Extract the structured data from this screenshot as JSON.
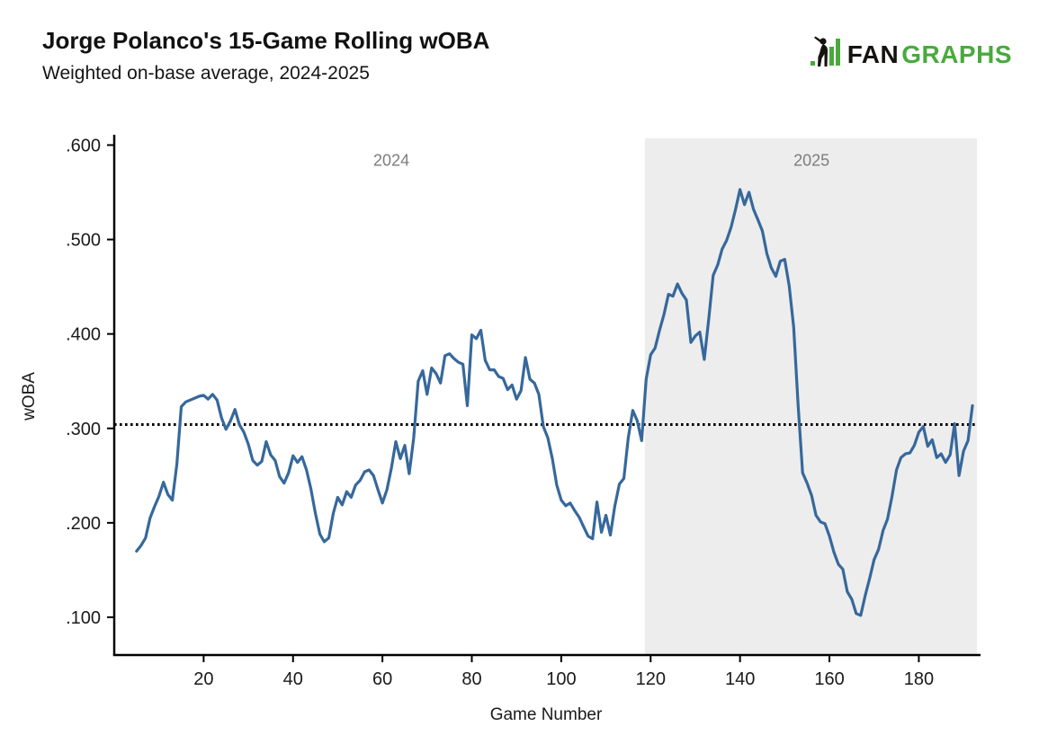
{
  "header": {
    "title": "Jorge Polanco's 15-Game Rolling wOBA",
    "subtitle": "Weighted on-base average, 2024-2025"
  },
  "logo": {
    "fan": "FAN",
    "graphs": "GRAPHS",
    "fan_color": "#14130f",
    "graphs_color": "#4aa93e",
    "icon": "batter-with-bars-icon"
  },
  "chart_data": {
    "type": "line",
    "title": "Jorge Polanco's 15-Game Rolling wOBA",
    "subtitle": "Weighted on-base average, 2024-2025",
    "xlabel": "Game Number",
    "ylabel": "wOBA",
    "grid": false,
    "legend": "none",
    "x_start": 5,
    "x_step": 1,
    "xlim": [
      0,
      193
    ],
    "ylim": [
      0.06,
      0.609
    ],
    "xticks": [
      20,
      40,
      60,
      80,
      100,
      120,
      140,
      160,
      180
    ],
    "yticks": [
      0.1,
      0.2,
      0.3,
      0.4,
      0.5,
      0.6
    ],
    "ytick_labels": [
      ".100",
      ".200",
      ".300",
      ".400",
      ".500",
      ".600"
    ],
    "reference_line": {
      "value": 0.304,
      "style": "dotted",
      "color": "#000000"
    },
    "regions": [
      {
        "label": "2024",
        "from": 0,
        "to": 118.7,
        "fill": "#ffffff"
      },
      {
        "label": "2025",
        "from": 118.7,
        "to": 193,
        "fill": "#ededed"
      }
    ],
    "annotations": [
      {
        "text": "2024",
        "x": 62,
        "y": 0.578,
        "color": "#7d7d7d"
      },
      {
        "text": "2025",
        "x": 156,
        "y": 0.578,
        "color": "#7d7d7d"
      }
    ],
    "series": [
      {
        "name": "15-game rolling wOBA",
        "color": "#36689B",
        "line_width": 3.2,
        "values": [
          0.17,
          0.176,
          0.184,
          0.205,
          0.217,
          0.228,
          0.243,
          0.23,
          0.224,
          0.262,
          0.323,
          0.328,
          0.33,
          0.332,
          0.334,
          0.335,
          0.331,
          0.336,
          0.33,
          0.311,
          0.299,
          0.308,
          0.32,
          0.304,
          0.296,
          0.283,
          0.266,
          0.261,
          0.265,
          0.286,
          0.272,
          0.266,
          0.249,
          0.242,
          0.253,
          0.271,
          0.264,
          0.27,
          0.256,
          0.236,
          0.21,
          0.188,
          0.18,
          0.184,
          0.21,
          0.227,
          0.219,
          0.233,
          0.227,
          0.24,
          0.245,
          0.254,
          0.256,
          0.25,
          0.235,
          0.221,
          0.235,
          0.258,
          0.286,
          0.268,
          0.282,
          0.252,
          0.29,
          0.35,
          0.361,
          0.336,
          0.364,
          0.358,
          0.348,
          0.377,
          0.379,
          0.374,
          0.37,
          0.368,
          0.324,
          0.399,
          0.395,
          0.404,
          0.372,
          0.362,
          0.362,
          0.355,
          0.353,
          0.341,
          0.346,
          0.331,
          0.34,
          0.375,
          0.352,
          0.348,
          0.336,
          0.302,
          0.29,
          0.268,
          0.24,
          0.224,
          0.218,
          0.221,
          0.213,
          0.206,
          0.196,
          0.186,
          0.183,
          0.222,
          0.19,
          0.208,
          0.187,
          0.218,
          0.241,
          0.247,
          0.29,
          0.319,
          0.308,
          0.287,
          0.352,
          0.378,
          0.385,
          0.404,
          0.421,
          0.442,
          0.44,
          0.453,
          0.443,
          0.436,
          0.391,
          0.398,
          0.402,
          0.373,
          0.416,
          0.462,
          0.473,
          0.49,
          0.499,
          0.513,
          0.532,
          0.553,
          0.537,
          0.55,
          0.532,
          0.521,
          0.509,
          0.485,
          0.47,
          0.461,
          0.477,
          0.479,
          0.451,
          0.407,
          0.325,
          0.253,
          0.242,
          0.229,
          0.208,
          0.201,
          0.199,
          0.186,
          0.169,
          0.156,
          0.151,
          0.127,
          0.119,
          0.104,
          0.102,
          0.123,
          0.141,
          0.161,
          0.172,
          0.192,
          0.204,
          0.228,
          0.256,
          0.269,
          0.273,
          0.274,
          0.282,
          0.296,
          0.302,
          0.281,
          0.288,
          0.269,
          0.273,
          0.264,
          0.272,
          0.305,
          0.25,
          0.276,
          0.287,
          0.324
        ]
      }
    ]
  }
}
